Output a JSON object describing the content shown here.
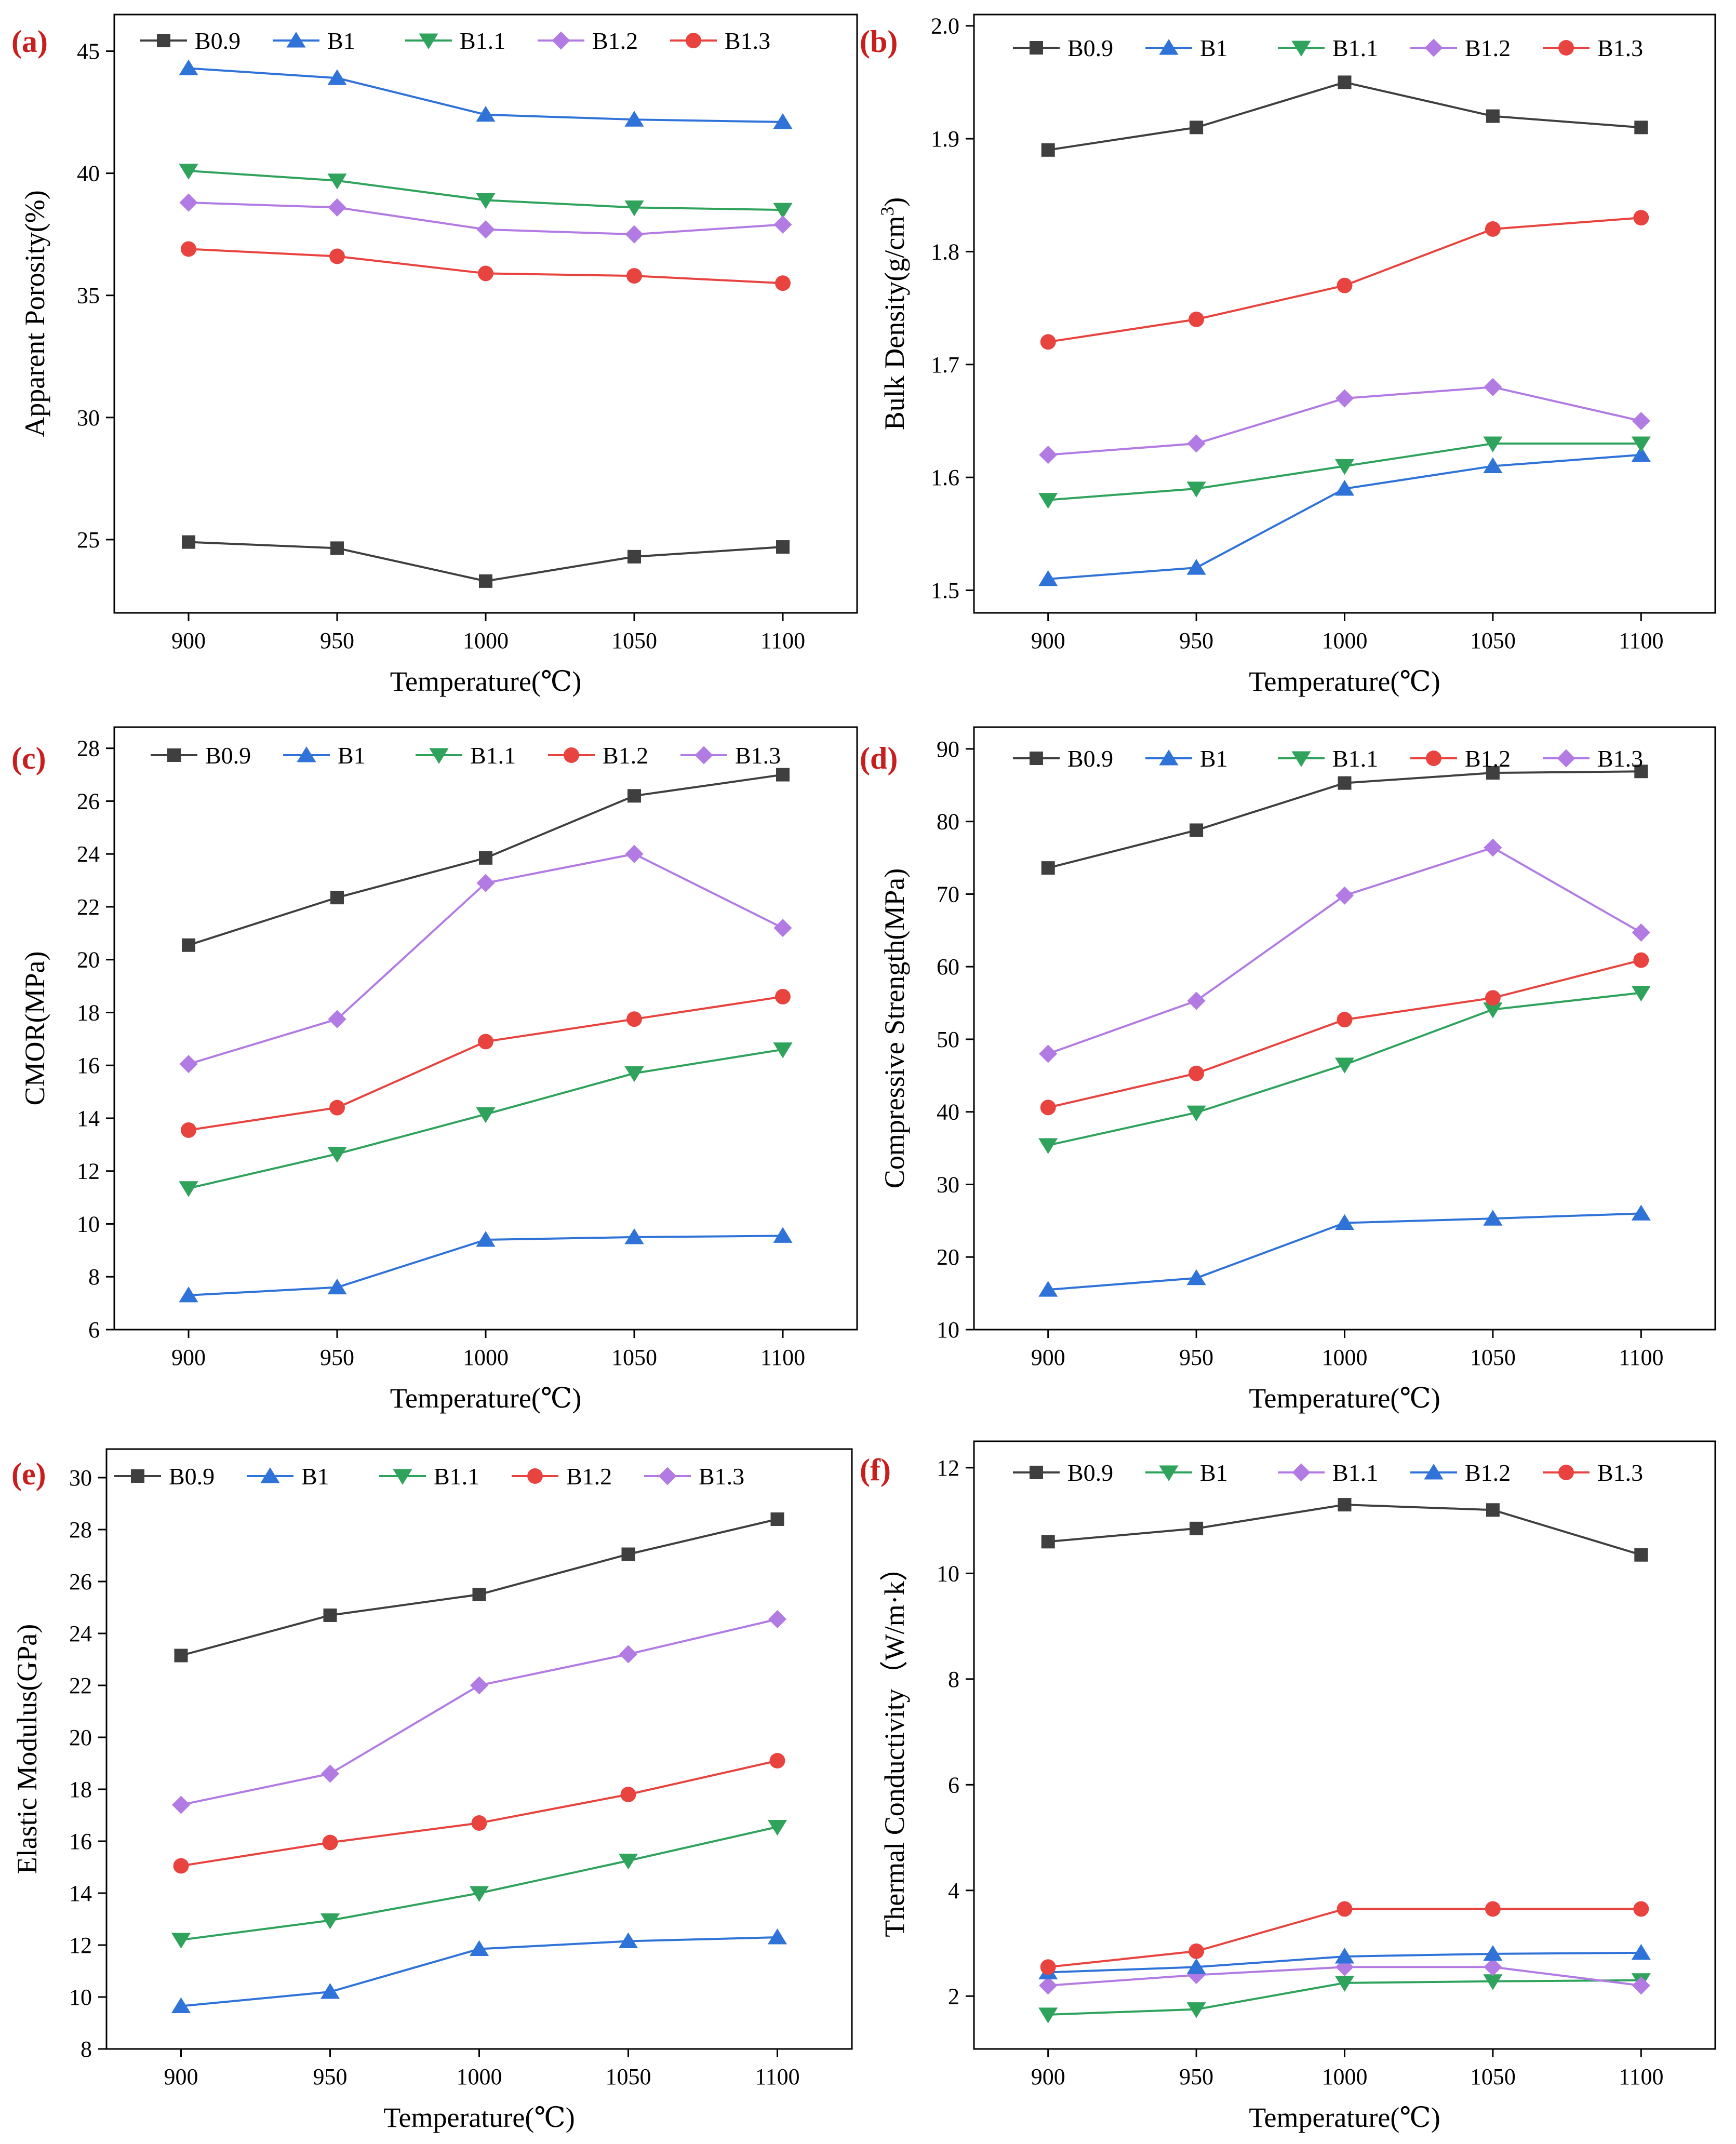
{
  "figure": {
    "panels": [
      {
        "label": "(a)"
      },
      {
        "label": "(b)"
      },
      {
        "label": "(c)"
      },
      {
        "label": "(d)"
      },
      {
        "label": "(e)"
      },
      {
        "label": "(f)"
      }
    ]
  },
  "colors": {
    "black": "#3f3f3f",
    "blue": "#2f73d9",
    "green": "#2fa35c",
    "red": "#e8433e",
    "purple": "#b27be3",
    "label": "#c81e1e"
  },
  "chart_data": [
    {
      "type": "line",
      "panel_label": "(a)",
      "xlabel": "Temperature(℃)",
      "ylabel": "Apparent Porosity(%)",
      "x": [
        900,
        950,
        1000,
        1050,
        1100
      ],
      "x_ticks": [
        "900",
        "950",
        "1000",
        "1050",
        "1100"
      ],
      "xlim": [
        875,
        1125
      ],
      "ylim": [
        22.0,
        46.5
      ],
      "y_ticks": [
        25,
        30,
        35,
        40,
        45
      ],
      "series": [
        {
          "name": "B0.9",
          "color": "#3f3f3f",
          "marker": "square",
          "values": [
            24.9,
            24.65,
            23.3,
            24.3,
            24.7
          ]
        },
        {
          "name": "B1",
          "color": "#2f73d9",
          "marker": "triangle-up",
          "values": [
            44.3,
            43.9,
            42.4,
            42.2,
            42.1
          ]
        },
        {
          "name": "B1.1",
          "color": "#2fa35c",
          "marker": "triangle-down",
          "values": [
            40.1,
            39.7,
            38.9,
            38.6,
            38.5
          ]
        },
        {
          "name": "B1.2",
          "color": "#b27be3",
          "marker": "diamond",
          "values": [
            38.8,
            38.6,
            37.7,
            37.5,
            37.9
          ]
        },
        {
          "name": "B1.3",
          "color": "#e8433e",
          "marker": "circle",
          "values": [
            36.9,
            36.6,
            35.9,
            35.8,
            35.5
          ]
        }
      ]
    },
    {
      "type": "line",
      "panel_label": "(b)",
      "xlabel": "Temperature(℃)",
      "ylabel": "Bulk Density(g/cm",
      "ylabel_sup": "3",
      "ylabel_end": ")",
      "x": [
        900,
        950,
        1000,
        1050,
        1100
      ],
      "x_ticks": [
        "900",
        "950",
        "1000",
        "1050",
        "1100"
      ],
      "xlim": [
        875,
        1125
      ],
      "ylim": [
        1.48,
        2.01
      ],
      "y_ticks": [
        1.5,
        1.6,
        1.7,
        1.8,
        1.9,
        2.0
      ],
      "y_tick_labels": [
        "1.5",
        "1.6",
        "1.7",
        "1.8",
        "1.9",
        "2.0"
      ],
      "series": [
        {
          "name": "B0.9",
          "color": "#3f3f3f",
          "marker": "square",
          "values": [
            1.89,
            1.91,
            1.95,
            1.92,
            1.91
          ]
        },
        {
          "name": "B1",
          "color": "#2f73d9",
          "marker": "triangle-up",
          "values": [
            1.51,
            1.52,
            1.59,
            1.61,
            1.62
          ]
        },
        {
          "name": "B1.1",
          "color": "#2fa35c",
          "marker": "triangle-down",
          "values": [
            1.58,
            1.59,
            1.61,
            1.63,
            1.63
          ]
        },
        {
          "name": "B1.2",
          "color": "#b27be3",
          "marker": "diamond",
          "values": [
            1.62,
            1.63,
            1.67,
            1.68,
            1.65
          ]
        },
        {
          "name": "B1.3",
          "color": "#e8433e",
          "marker": "circle",
          "values": [
            1.72,
            1.74,
            1.77,
            1.82,
            1.83
          ]
        }
      ]
    },
    {
      "type": "line",
      "panel_label": "(c)",
      "xlabel": "Temperature(℃)",
      "ylabel": "CMOR(MPa)",
      "x": [
        900,
        950,
        1000,
        1050,
        1100
      ],
      "x_ticks": [
        "900",
        "950",
        "1000",
        "1050",
        "1100"
      ],
      "xlim": [
        875,
        1125
      ],
      "ylim": [
        6,
        28.8
      ],
      "y_ticks": [
        6,
        8,
        10,
        12,
        14,
        16,
        18,
        20,
        22,
        24,
        26,
        28
      ],
      "series": [
        {
          "name": "B0.9",
          "color": "#3f3f3f",
          "marker": "square",
          "values": [
            20.55,
            22.35,
            23.85,
            26.2,
            27.0
          ]
        },
        {
          "name": "B1",
          "color": "#2f73d9",
          "marker": "triangle-up",
          "values": [
            7.3,
            7.6,
            9.4,
            9.5,
            9.55
          ]
        },
        {
          "name": "B1.1",
          "color": "#2fa35c",
          "marker": "triangle-down",
          "values": [
            11.35,
            12.65,
            14.15,
            15.7,
            16.6
          ]
        },
        {
          "name": "B1.2",
          "color": "#e8433e",
          "marker": "circle",
          "values": [
            13.55,
            14.4,
            16.9,
            17.75,
            18.6
          ]
        },
        {
          "name": "B1.3",
          "color": "#b27be3",
          "marker": "diamond",
          "values": [
            16.05,
            17.75,
            22.9,
            24.0,
            21.2
          ]
        }
      ]
    },
    {
      "type": "line",
      "panel_label": "(d)",
      "xlabel": "Temperature(℃)",
      "ylabel": "Compressive Strength(MPa)",
      "x": [
        900,
        950,
        1000,
        1050,
        1100
      ],
      "x_ticks": [
        "900",
        "950",
        "1000",
        "1050",
        "1100"
      ],
      "xlim": [
        875,
        1125
      ],
      "ylim": [
        10,
        93
      ],
      "y_ticks": [
        10,
        20,
        30,
        40,
        50,
        60,
        70,
        80,
        90
      ],
      "series": [
        {
          "name": "B0.9",
          "color": "#3f3f3f",
          "marker": "square",
          "values": [
            73.6,
            78.8,
            85.3,
            86.7,
            86.9
          ]
        },
        {
          "name": "B1",
          "color": "#2f73d9",
          "marker": "triangle-up",
          "values": [
            15.5,
            17.1,
            24.7,
            25.3,
            26.0
          ]
        },
        {
          "name": "B1.1",
          "color": "#2fa35c",
          "marker": "triangle-down",
          "values": [
            35.4,
            39.9,
            46.5,
            54.1,
            56.4
          ]
        },
        {
          "name": "B1.2",
          "color": "#e8433e",
          "marker": "circle",
          "values": [
            40.6,
            45.3,
            52.7,
            55.7,
            60.9
          ]
        },
        {
          "name": "B1.3",
          "color": "#b27be3",
          "marker": "diamond",
          "values": [
            48.0,
            55.3,
            69.8,
            76.4,
            64.7
          ]
        }
      ]
    },
    {
      "type": "line",
      "panel_label": "(e)",
      "xlabel": "Temperature(℃)",
      "ylabel": "Elastic Modulus(GPa)",
      "x": [
        900,
        950,
        1000,
        1050,
        1100
      ],
      "x_ticks": [
        "900",
        "950",
        "1000",
        "1050",
        "1100"
      ],
      "xlim": [
        875,
        1125
      ],
      "ylim": [
        8,
        31.1
      ],
      "y_ticks": [
        8,
        10,
        12,
        14,
        16,
        18,
        20,
        22,
        24,
        26,
        28,
        30
      ],
      "series": [
        {
          "name": "B0.9",
          "color": "#3f3f3f",
          "marker": "square",
          "values": [
            23.15,
            24.7,
            25.5,
            27.05,
            28.4
          ]
        },
        {
          "name": "B1",
          "color": "#2f73d9",
          "marker": "triangle-up",
          "values": [
            9.65,
            10.2,
            11.85,
            12.15,
            12.3
          ]
        },
        {
          "name": "B1.1",
          "color": "#2fa35c",
          "marker": "triangle-down",
          "values": [
            12.2,
            12.95,
            14.0,
            15.25,
            16.55
          ]
        },
        {
          "name": "B1.2",
          "color": "#e8433e",
          "marker": "circle",
          "values": [
            15.05,
            15.95,
            16.7,
            17.8,
            19.1
          ]
        },
        {
          "name": "B1.3",
          "color": "#b27be3",
          "marker": "diamond",
          "values": [
            17.4,
            18.6,
            22.0,
            23.2,
            24.55
          ]
        }
      ]
    },
    {
      "type": "line",
      "panel_label": "(f)",
      "xlabel": "Temperature(℃)",
      "ylabel": "Thermal Conductivity（W/m·k）",
      "x": [
        900,
        950,
        1000,
        1050,
        1100
      ],
      "x_ticks": [
        "900",
        "950",
        "1000",
        "1050",
        "1100"
      ],
      "xlim": [
        875,
        1125
      ],
      "ylim": [
        1.0,
        12.5
      ],
      "y_ticks": [
        2,
        4,
        6,
        8,
        10,
        12
      ],
      "series": [
        {
          "name": "B0.9",
          "color": "#3f3f3f",
          "marker": "square",
          "values": [
            10.6,
            10.85,
            11.3,
            11.2,
            10.35
          ]
        },
        {
          "name": "B1",
          "color": "#2fa35c",
          "marker": "triangle-down",
          "values": [
            1.65,
            1.75,
            2.25,
            2.28,
            2.3
          ]
        },
        {
          "name": "B1.1",
          "color": "#b27be3",
          "marker": "diamond",
          "values": [
            2.2,
            2.4,
            2.55,
            2.55,
            2.2
          ]
        },
        {
          "name": "B1.2",
          "color": "#2f73d9",
          "marker": "triangle-up",
          "values": [
            2.45,
            2.55,
            2.75,
            2.8,
            2.82
          ]
        },
        {
          "name": "B1.3",
          "color": "#e8433e",
          "marker": "circle",
          "values": [
            2.55,
            2.85,
            3.65,
            3.65,
            3.65
          ]
        }
      ]
    }
  ]
}
